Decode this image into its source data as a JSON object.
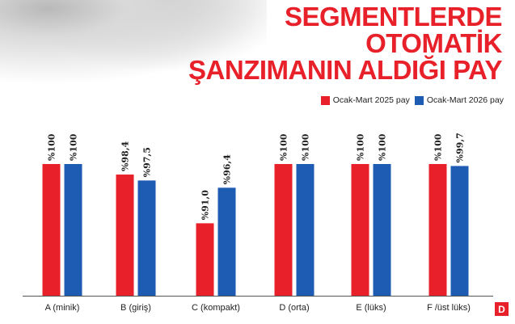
{
  "title_lines": [
    "SEGMENTLERDE",
    "OTOMATİK",
    "ŞANZIMANIN ALDIĞI PAY"
  ],
  "logo_letter": "D",
  "colors": {
    "series_2025": "#e8202a",
    "series_2026": "#1e5cb3",
    "title": "#e8202a",
    "axis": "#555555"
  },
  "chart_data": {
    "type": "bar",
    "title": "SEGMENTLERDE OTOMATİK ŞANZIMANIN ALDIĞI PAY",
    "categories": [
      "A (minik)",
      "B (giriş)",
      "C (kompakt)",
      "D (orta)",
      "E (lüks)",
      "F /üst lüks)"
    ],
    "series": [
      {
        "name": "Ocak-Mart 2025 pay",
        "values": [
          100,
          98.4,
          91.0,
          100,
          100,
          100
        ],
        "labels": [
          "%100",
          "%98,4",
          "%91,0",
          "%100",
          "%100",
          "%100"
        ],
        "color": "#e8202a"
      },
      {
        "name": "Ocak-Mart 2026 pay",
        "values": [
          100,
          97.5,
          96.4,
          100,
          100,
          99.7
        ],
        "labels": [
          "%100",
          "%97,5",
          "%96,4",
          "%100",
          "%100",
          "%99,7"
        ],
        "color": "#1e5cb3"
      }
    ],
    "ylim": [
      80,
      100
    ],
    "legend": "top-right",
    "grid": false
  }
}
